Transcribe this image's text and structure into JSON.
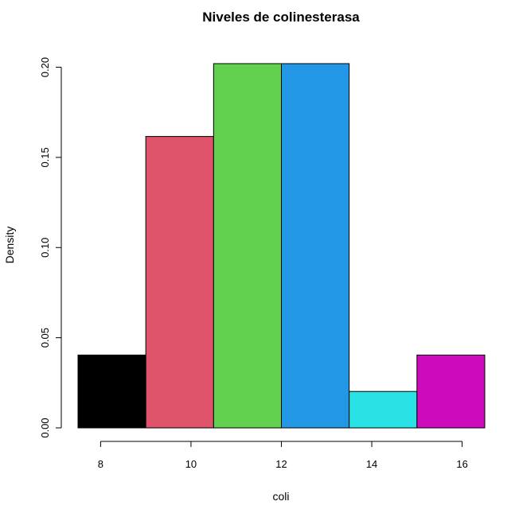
{
  "chart_data": {
    "type": "bar",
    "title": "Niveles de colinesterasa",
    "xlabel": "coli",
    "ylabel": "Density",
    "breaks": [
      7.5,
      9,
      10.5,
      12,
      13.5,
      15,
      16.5
    ],
    "values": [
      0.0404,
      0.1616,
      0.202,
      0.202,
      0.0202,
      0.0404
    ],
    "colors": [
      "#000000",
      "#DF536B",
      "#61D04F",
      "#2297E6",
      "#28E2E5",
      "#CD0BBC"
    ],
    "x_ticks": [
      8,
      10,
      12,
      14,
      16
    ],
    "x_tick_labels": [
      "8",
      "10",
      "12",
      "14",
      "16"
    ],
    "y_ticks": [
      0,
      0.05,
      0.1,
      0.15,
      0.2
    ],
    "y_tick_labels": [
      "0.00",
      "0.05",
      "0.10",
      "0.15",
      "0.20"
    ],
    "xlim": [
      7.5,
      16.5
    ],
    "ylim": [
      0,
      0.202
    ],
    "grid": false,
    "legend": "none"
  }
}
